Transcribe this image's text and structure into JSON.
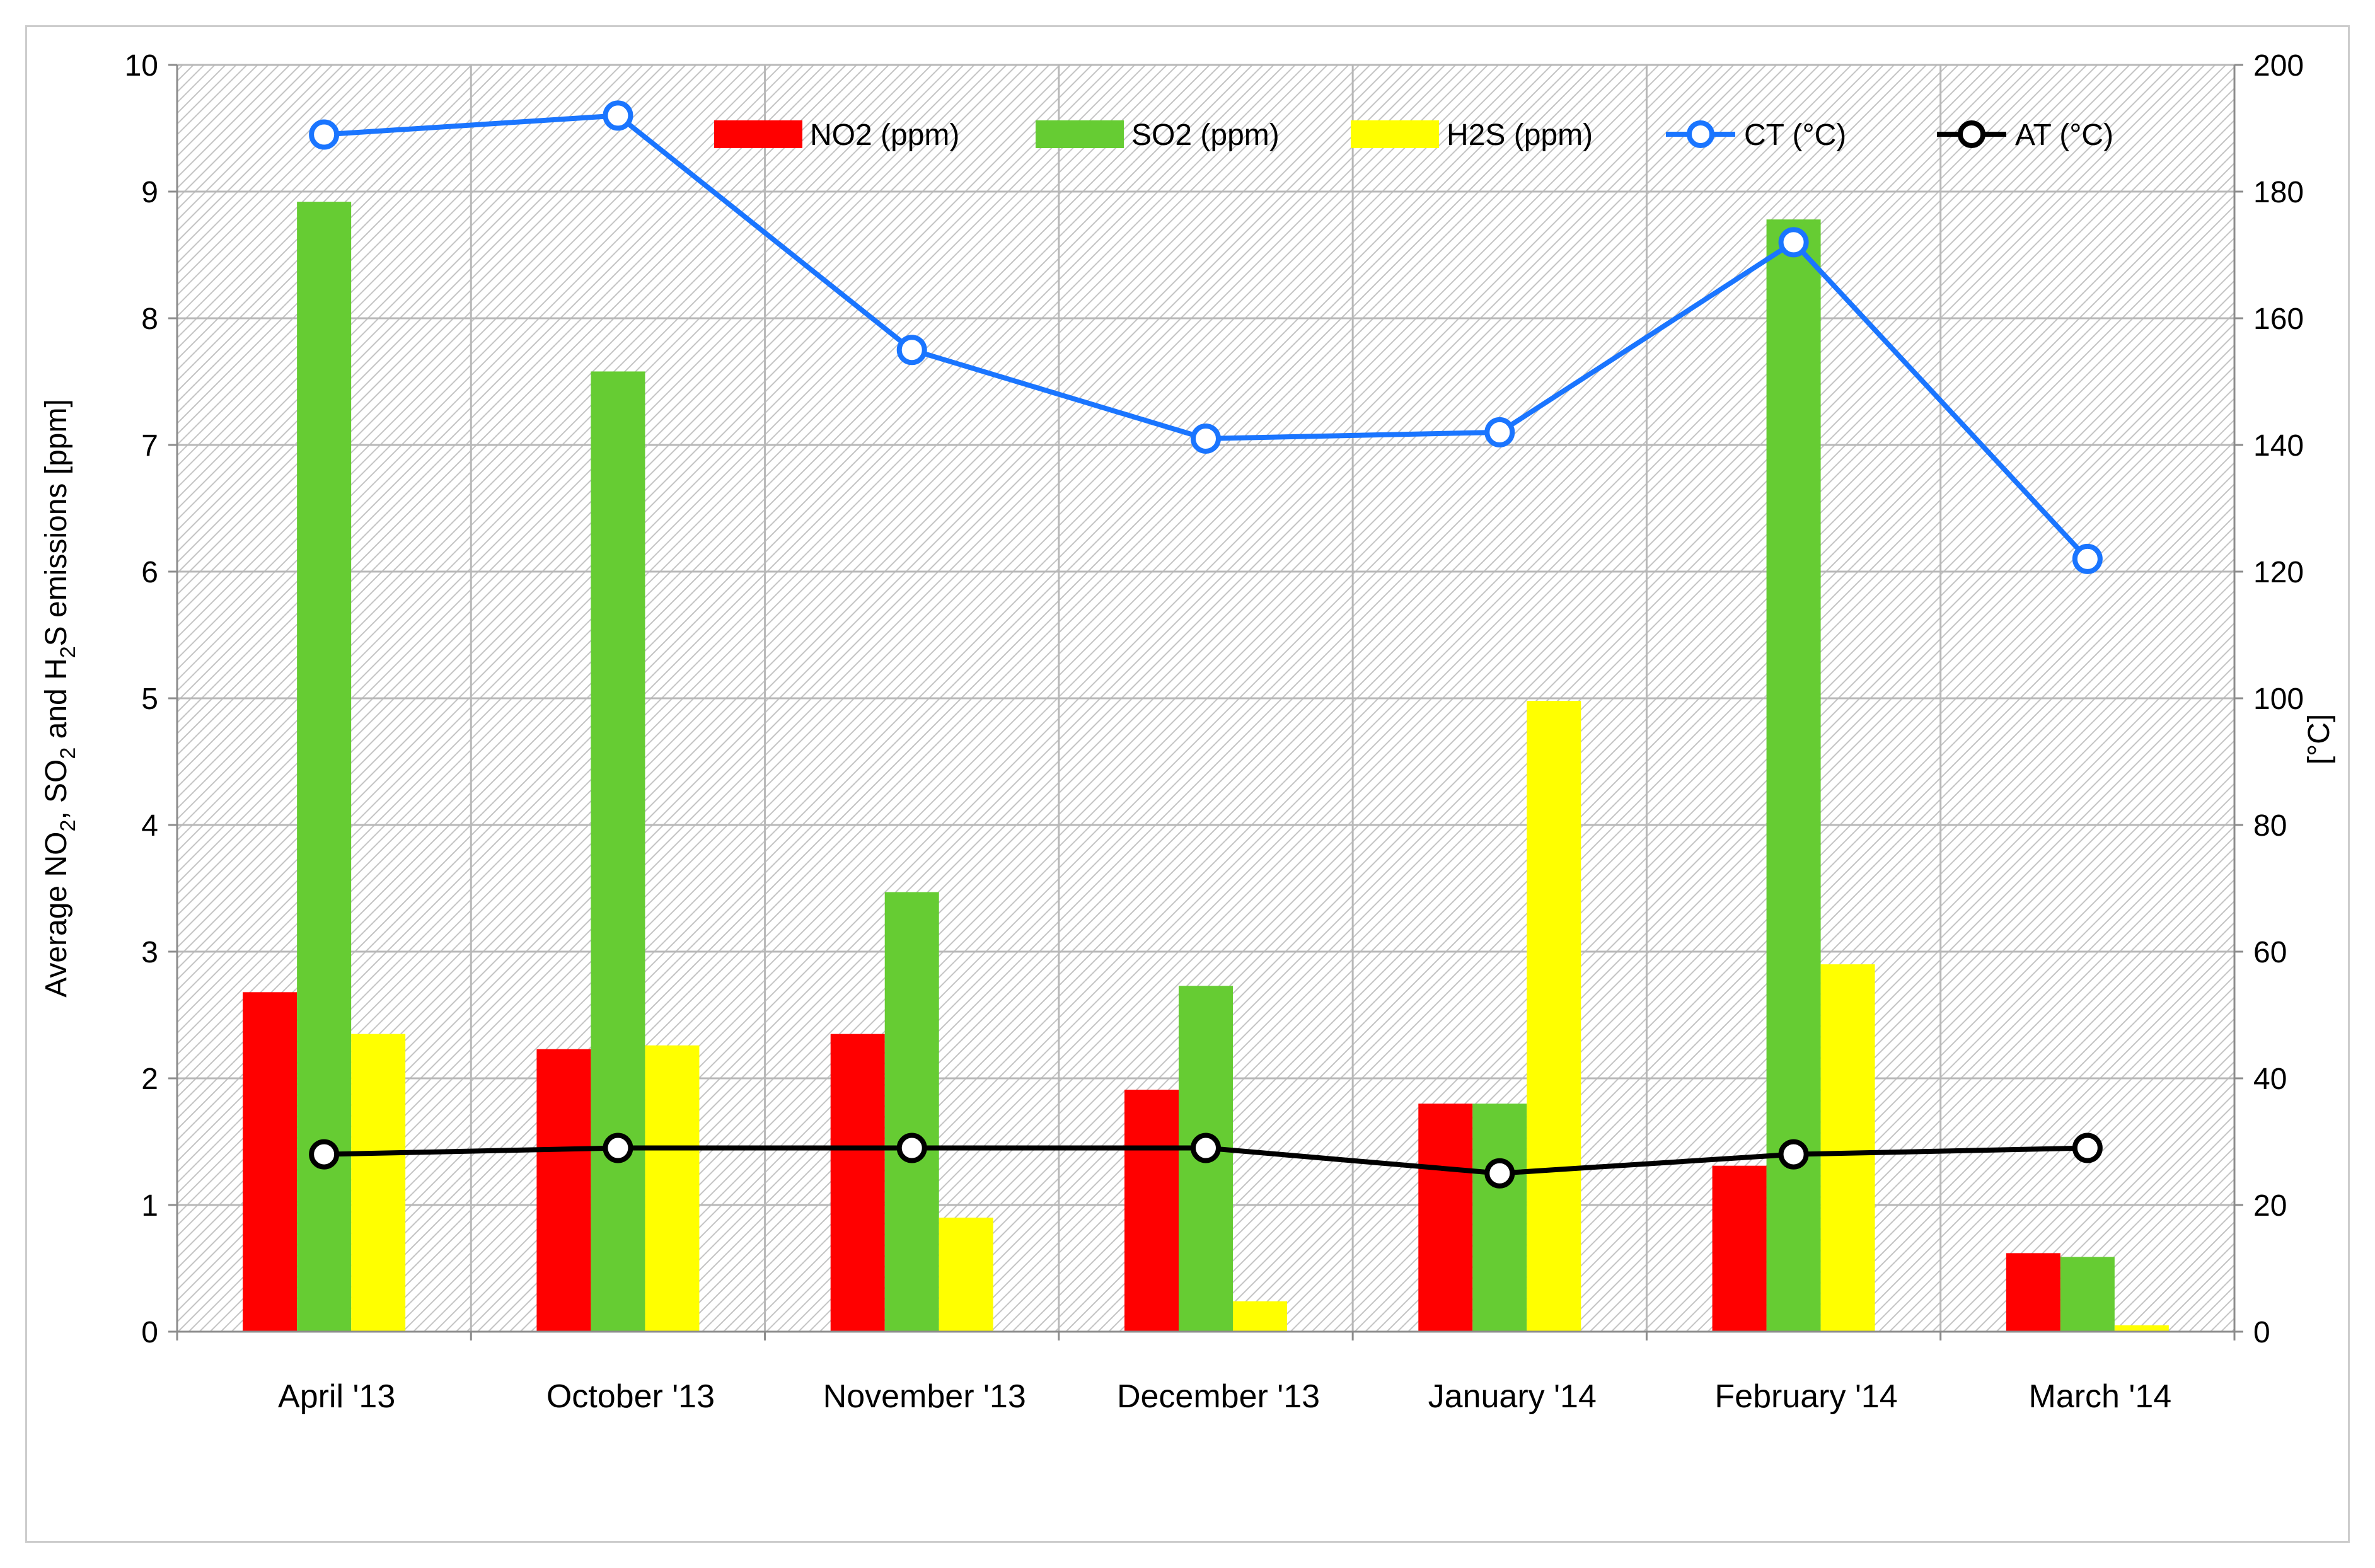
{
  "chart_data": {
    "type": "bar",
    "categories": [
      "April '13",
      "October '13",
      "November '13",
      "December '13",
      "January '14",
      "February '14",
      "March '14"
    ],
    "series": [
      {
        "name": "NO2 (ppm)",
        "kind": "bar",
        "axis": "left",
        "color": "#ff0000",
        "values": [
          2.68,
          2.23,
          2.35,
          1.91,
          1.8,
          1.31,
          0.62
        ]
      },
      {
        "name": "SO2 (ppm)",
        "kind": "bar",
        "axis": "left",
        "color": "#66cc33",
        "values": [
          8.92,
          7.58,
          3.47,
          2.73,
          1.8,
          8.78,
          0.59
        ]
      },
      {
        "name": "H2S (ppm)",
        "kind": "bar",
        "axis": "left",
        "color": "#ffff00",
        "values": [
          2.35,
          2.26,
          0.9,
          0.24,
          4.98,
          2.9,
          0.05
        ]
      },
      {
        "name": "CT (°C)",
        "kind": "line",
        "axis": "right",
        "color": "#1a75ff",
        "values": [
          189,
          192,
          155,
          141,
          142,
          172,
          122
        ]
      },
      {
        "name": "AT (°C)",
        "kind": "line",
        "axis": "right",
        "color": "#000000",
        "values": [
          28,
          29,
          29,
          29,
          25,
          28,
          29
        ]
      }
    ],
    "ylabel": "Average NO2, SO2 and H2S emissions [ppm]",
    "y2label": "[°C]",
    "ylim": [
      0,
      10
    ],
    "y2lim": [
      0,
      200
    ],
    "yticks": [
      "0",
      "1",
      "2",
      "3",
      "4",
      "5",
      "6",
      "7",
      "8",
      "9",
      "10"
    ],
    "y2ticks": [
      "0",
      "20",
      "40",
      "60",
      "80",
      "100",
      "120",
      "140",
      "160",
      "180",
      "200"
    ],
    "grid": true,
    "legend_position": "top"
  }
}
